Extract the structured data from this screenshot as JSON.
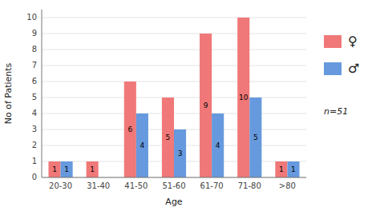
{
  "chart_data": {
    "type": "bar",
    "xlabel": "Age",
    "ylabel": "No of Patients",
    "categories": [
      "20-30",
      "31-40",
      "41-50",
      "51-60",
      "61-70",
      "71-80",
      ">80"
    ],
    "series": [
      {
        "name": "♀",
        "color": "#f07878",
        "values": [
          1,
          1,
          6,
          5,
          9,
          10,
          1
        ]
      },
      {
        "name": "♂",
        "color": "#6699dd",
        "values": [
          1,
          0,
          4,
          3,
          4,
          5,
          1
        ]
      }
    ],
    "ylim": [
      0,
      10.5
    ],
    "yticks": [
      0,
      1,
      2,
      3,
      4,
      5,
      6,
      7,
      8,
      9,
      10
    ],
    "grid": true,
    "data_labels": true,
    "legend": "right",
    "annotation": "n=51"
  }
}
